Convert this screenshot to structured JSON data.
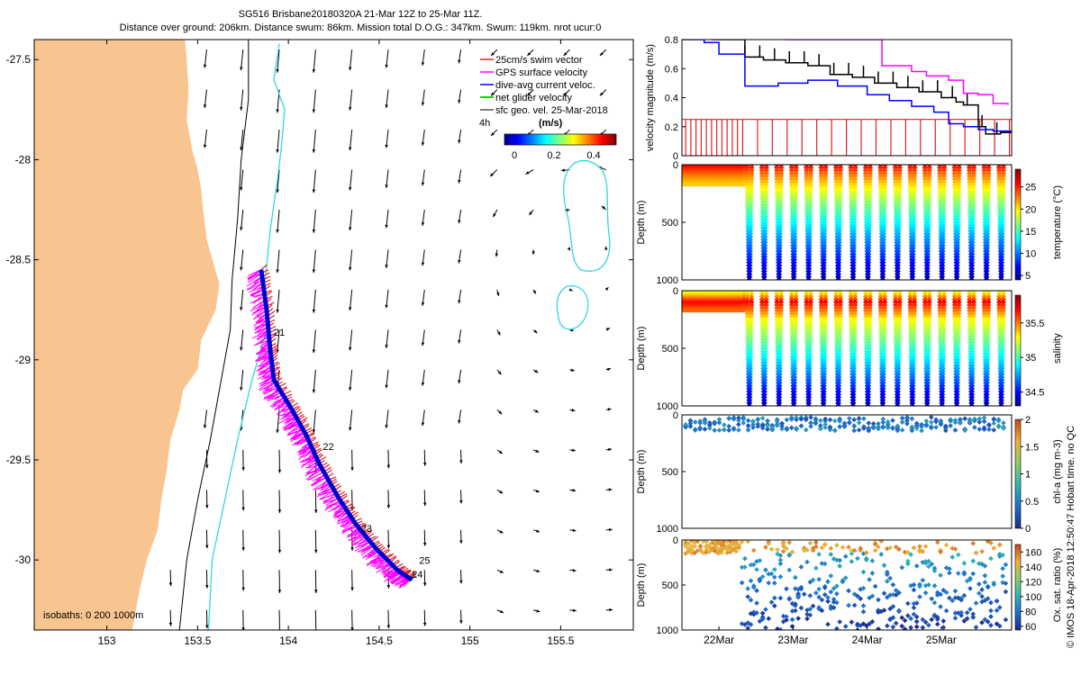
{
  "header": {
    "line1": "SG516 Brisbane20180320A 21-Mar 12Z to 25-Mar 11Z.",
    "line2": "Distance over ground: 206km. Distance swum: 86km. Mission total D.O.G.: 347km. Swum: 119km. nrot ucur:0"
  },
  "side_note": "© IMOS 18-Apr-2018 12:50:47 Hobart time. no QC",
  "colors": {
    "land": "#f8c48f",
    "contour_black": "#000000",
    "contour_cyan": "#33d6e0",
    "swim_red": "#e02020",
    "gps_magenta": "#ff00ff",
    "track_blue": "#0000ff",
    "net_green": "#00e000"
  },
  "chart_data": [
    {
      "type": "map",
      "xlim": [
        152.6,
        155.9
      ],
      "ylim": [
        -30.35,
        -27.4
      ],
      "xticks": [
        "153",
        "153.5",
        "154",
        "154.5",
        "155",
        "155.5"
      ],
      "yticks": [
        "-27.5",
        "-28",
        "-28.5",
        "-29",
        "-29.5",
        "-30"
      ],
      "legend": {
        "placement": "top-right",
        "entries": [
          "25cm/s swim vector",
          "GPS surface velocity",
          "dive-avg current veloc.",
          "net glider velocity",
          "sfc geo. vel. 25-Mar-2018"
        ],
        "scale_label": "(m/s)",
        "colorbar_ticks": [
          "0",
          "0.2",
          "0.4"
        ],
        "side_label": "4h"
      },
      "isobaths_label": "isobaths: 0   200  1000m",
      "day_markers": [
        {
          "label": "21",
          "lon": 153.92,
          "lat": -28.88
        },
        {
          "label": "22",
          "lon": 154.19,
          "lat": -29.45
        },
        {
          "label": "23",
          "lon": 154.4,
          "lat": -29.86
        },
        {
          "label": "24",
          "lon": 154.68,
          "lat": -30.09
        },
        {
          "label": "25",
          "lon": 154.72,
          "lat": -30.02
        }
      ],
      "track": [
        [
          153.85,
          -28.55
        ],
        [
          153.88,
          -28.75
        ],
        [
          153.9,
          -28.95
        ],
        [
          153.92,
          -29.1
        ],
        [
          154.02,
          -29.25
        ],
        [
          154.1,
          -29.38
        ],
        [
          154.17,
          -29.52
        ],
        [
          154.27,
          -29.68
        ],
        [
          154.37,
          -29.82
        ],
        [
          154.48,
          -29.94
        ],
        [
          154.6,
          -30.05
        ],
        [
          154.68,
          -30.1
        ]
      ],
      "coastline": [
        [
          153.43,
          -27.4
        ],
        [
          153.44,
          -27.5
        ],
        [
          153.45,
          -27.65
        ],
        [
          153.44,
          -27.8
        ],
        [
          153.47,
          -27.95
        ],
        [
          153.5,
          -28.05
        ],
        [
          153.52,
          -28.15
        ],
        [
          153.53,
          -28.25
        ],
        [
          153.55,
          -28.4
        ],
        [
          153.62,
          -28.62
        ],
        [
          153.6,
          -28.75
        ],
        [
          153.52,
          -28.9
        ],
        [
          153.5,
          -29.05
        ],
        [
          153.42,
          -29.15
        ],
        [
          153.4,
          -29.25
        ],
        [
          153.35,
          -29.4
        ],
        [
          153.33,
          -29.55
        ],
        [
          153.3,
          -29.7
        ],
        [
          153.28,
          -29.85
        ],
        [
          153.22,
          -30.0
        ],
        [
          153.18,
          -30.15
        ],
        [
          153.14,
          -30.35
        ]
      ],
      "isobath_200": [
        [
          153.78,
          -27.4
        ],
        [
          153.78,
          -27.7
        ],
        [
          153.74,
          -28.0
        ],
        [
          153.72,
          -28.3
        ],
        [
          153.69,
          -28.6
        ],
        [
          153.68,
          -28.85
        ],
        [
          153.63,
          -29.1
        ],
        [
          153.57,
          -29.4
        ],
        [
          153.5,
          -29.7
        ],
        [
          153.44,
          -30.0
        ],
        [
          153.4,
          -30.35
        ]
      ],
      "isobath_1000": [
        [
          153.95,
          -27.42
        ],
        [
          153.92,
          -27.6
        ],
        [
          153.98,
          -27.75
        ],
        [
          153.96,
          -27.95
        ],
        [
          153.94,
          -28.1
        ],
        [
          153.9,
          -28.35
        ],
        [
          153.87,
          -28.62
        ],
        [
          153.88,
          -28.85
        ],
        [
          153.8,
          -29.1
        ],
        [
          153.72,
          -29.4
        ],
        [
          153.65,
          -29.7
        ],
        [
          153.58,
          -30.0
        ],
        [
          153.56,
          -30.35
        ]
      ]
    },
    {
      "type": "line",
      "ylabel": "velocity magnitude (m/s)",
      "xlim": [
        21.5,
        25.95
      ],
      "ylim": [
        0,
        0.8
      ],
      "yticks": [
        "0",
        "0.2",
        "0.4",
        "0.6",
        "0.8"
      ],
      "series": [
        {
          "color": "black",
          "x": [
            21.9,
            22.1,
            22.35,
            22.6,
            22.9,
            23.2,
            23.5,
            23.8,
            24.1,
            24.4,
            24.7,
            25.0,
            25.2,
            25.3,
            25.5,
            25.6,
            25.8,
            25.95
          ],
          "values": [
            0.8,
            0.8,
            0.68,
            0.66,
            0.64,
            0.62,
            0.56,
            0.54,
            0.5,
            0.47,
            0.44,
            0.4,
            0.37,
            0.35,
            0.2,
            0.15,
            0.16,
            0.17
          ]
        },
        {
          "color": "magenta",
          "x": [
            22.9,
            24.0,
            24.2,
            24.6,
            24.8,
            25.1,
            25.3,
            25.5,
            25.7,
            25.9
          ],
          "values": [
            0.8,
            0.8,
            0.62,
            0.58,
            0.55,
            0.52,
            0.43,
            0.42,
            0.36,
            0.35
          ]
        },
        {
          "color": "blue",
          "x": [
            21.5,
            21.8,
            22.0,
            22.35,
            22.8,
            23.2,
            23.6,
            24.0,
            24.3,
            24.6,
            24.9,
            25.1,
            25.3,
            25.5,
            25.7,
            25.95
          ],
          "values": [
            0.8,
            0.78,
            0.7,
            0.48,
            0.5,
            0.52,
            0.48,
            0.42,
            0.38,
            0.34,
            0.3,
            0.22,
            0.2,
            0.18,
            0.17,
            0.17
          ]
        }
      ],
      "swim_bars": {
        "color": "red",
        "value": 0.25
      }
    },
    {
      "type": "heatmap",
      "ylabel": "Depth (m)",
      "colorbar_label": "temperature (°C)",
      "yticks": [
        "0",
        "500",
        "1000"
      ],
      "colorbar_ticks": [
        "5",
        "10",
        "15",
        "20",
        "25"
      ],
      "crange": [
        4,
        29
      ],
      "xlim": [
        21.5,
        25.95
      ],
      "ylim": [
        0,
        1000
      ],
      "variable": "temperature"
    },
    {
      "type": "heatmap",
      "ylabel": "Depth (m)",
      "colorbar_label": "salinity",
      "yticks": [
        "0",
        "500",
        "1000"
      ],
      "colorbar_ticks": [
        "34.5",
        "35",
        "35.5"
      ],
      "crange": [
        34.3,
        35.9
      ],
      "xlim": [
        21.5,
        25.95
      ],
      "ylim": [
        0,
        1000
      ],
      "variable": "salinity"
    },
    {
      "type": "heatmap",
      "ylabel": "Depth (m)",
      "colorbar_label": "chl-a (mg m-3)",
      "yticks": [
        "0",
        "500",
        "1000"
      ],
      "colorbar_ticks": [
        "0",
        "0.5",
        "1",
        "1.5",
        "2"
      ],
      "crange": [
        0,
        2
      ],
      "xlim": [
        21.5,
        25.95
      ],
      "ylim": [
        0,
        1000
      ],
      "variable": "chl"
    },
    {
      "type": "heatmap",
      "ylabel": "Depth (m)",
      "colorbar_label": "Ox. sat. ratio (%)",
      "yticks": [
        "0",
        "500",
        "1000"
      ],
      "colorbar_ticks": [
        "60",
        "80",
        "100",
        "120",
        "140",
        "160"
      ],
      "crange": [
        55,
        170
      ],
      "xlim": [
        21.5,
        25.95
      ],
      "ylim": [
        0,
        1000
      ],
      "variable": "oxygen",
      "xticks": [
        {
          "label": "22Mar",
          "x": 22
        },
        {
          "label": "23Mar",
          "x": 23
        },
        {
          "label": "24Mar",
          "x": 24
        },
        {
          "label": "25Mar",
          "x": 25
        }
      ]
    }
  ]
}
